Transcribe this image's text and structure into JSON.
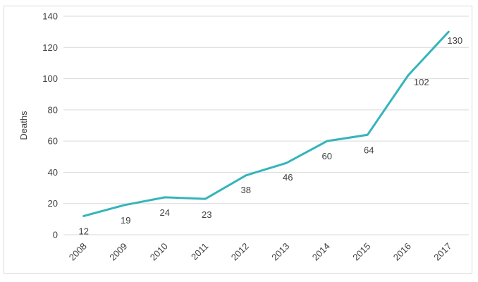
{
  "chart_data": {
    "type": "line",
    "title": "",
    "xlabel": "",
    "ylabel": "Deaths",
    "categories": [
      "2008",
      "2009",
      "2010",
      "2011",
      "2012",
      "2013",
      "2014",
      "2015",
      "2016",
      "2017"
    ],
    "series": [
      {
        "name": "Deaths",
        "values": [
          12,
          19,
          24,
          23,
          38,
          46,
          60,
          64,
          102,
          130
        ]
      }
    ],
    "show_data_labels": true,
    "ylim": [
      0,
      140
    ],
    "ytick_step": 20,
    "yticks": [
      0,
      20,
      40,
      60,
      80,
      100,
      120,
      140
    ],
    "grid": "horizontal",
    "legend": "none",
    "marker": "none",
    "colors": {
      "line": "#35b4bb",
      "gridline": "#d9d9d9",
      "frame_border": "#d9d9d9",
      "text": "#404040"
    }
  }
}
